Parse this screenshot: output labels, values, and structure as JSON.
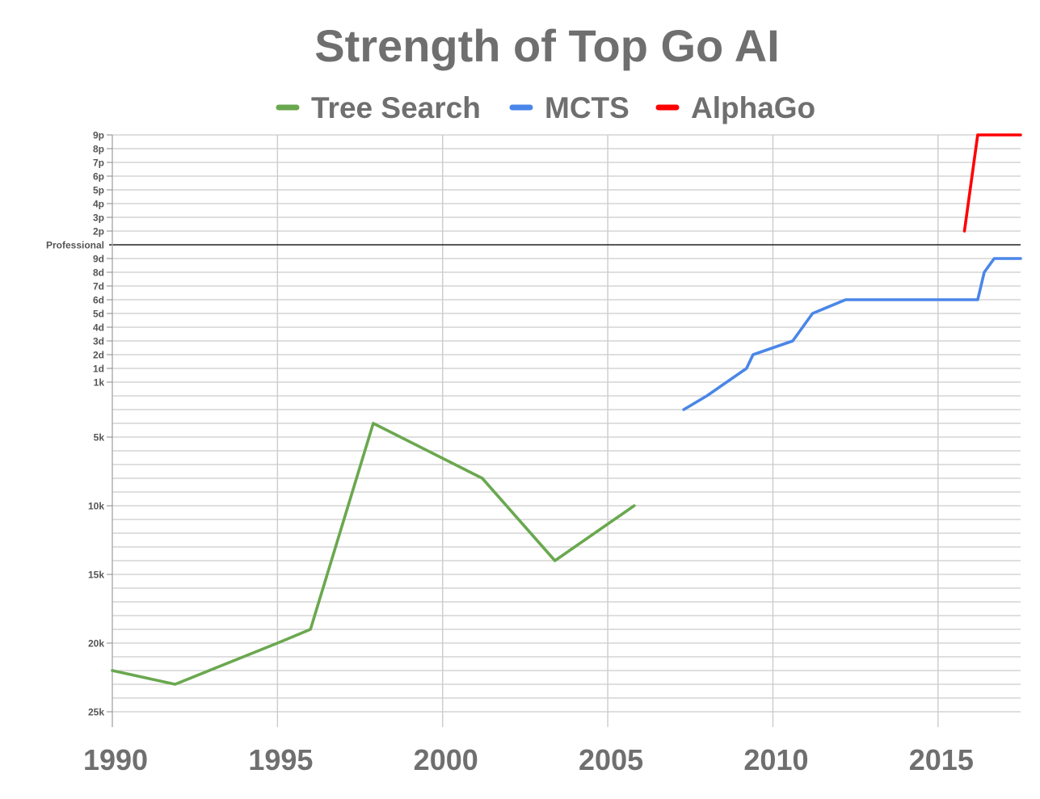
{
  "chart_data": {
    "type": "line",
    "title": "Strength of Top Go AI",
    "legend_position": "top",
    "grid": true,
    "xlim": [
      1990,
      2017.5
    ],
    "x_ticks": [
      "1990",
      "1995",
      "2000",
      "2005",
      "2010",
      "2015"
    ],
    "y_tick_labels": [
      "9p",
      "8p",
      "7p",
      "6p",
      "5p",
      "4p",
      "3p",
      "2p",
      "Professional",
      "9d",
      "8d",
      "7d",
      "6d",
      "5d",
      "4d",
      "3d",
      "2d",
      "1d",
      "1k",
      "5k",
      "10k",
      "15k",
      "20k",
      "25k"
    ],
    "y_scale_note": "rank scale: 25k (weakest) up to 9p (strongest)",
    "series": [
      {
        "name": "Tree Search",
        "color": "#6aa84f",
        "points": [
          {
            "x": 1990.0,
            "y": "22k"
          },
          {
            "x": 1991.9,
            "y": "23k"
          },
          {
            "x": 1995.0,
            "y": "20k"
          },
          {
            "x": 1996.0,
            "y": "19k"
          },
          {
            "x": 1997.9,
            "y": "4k"
          },
          {
            "x": 2001.2,
            "y": "8k"
          },
          {
            "x": 2003.4,
            "y": "14k"
          },
          {
            "x": 2005.8,
            "y": "10k"
          }
        ]
      },
      {
        "name": "MCTS",
        "color": "#4a86e8",
        "points": [
          {
            "x": 2007.3,
            "y": "3k"
          },
          {
            "x": 2008.0,
            "y": "2k"
          },
          {
            "x": 2009.2,
            "y": "1d"
          },
          {
            "x": 2009.4,
            "y": "2d"
          },
          {
            "x": 2010.6,
            "y": "3d"
          },
          {
            "x": 2011.2,
            "y": "5d"
          },
          {
            "x": 2012.2,
            "y": "6d"
          },
          {
            "x": 2016.2,
            "y": "6d"
          },
          {
            "x": 2016.4,
            "y": "8d"
          },
          {
            "x": 2016.7,
            "y": "9d"
          },
          {
            "x": 2017.5,
            "y": "9d"
          }
        ]
      },
      {
        "name": "AlphaGo",
        "color": "#ff0000",
        "points": [
          {
            "x": 2015.8,
            "y": "2p"
          },
          {
            "x": 2016.2,
            "y": "9p"
          },
          {
            "x": 2017.5,
            "y": "9p"
          }
        ]
      }
    ]
  }
}
